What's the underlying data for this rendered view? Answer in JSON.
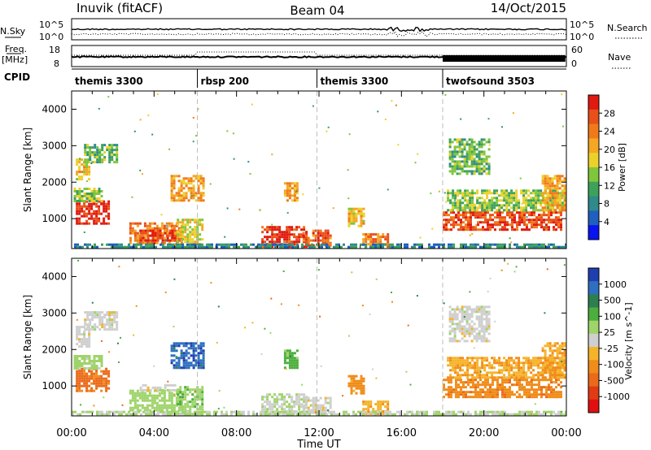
{
  "header": {
    "station": "Inuvik (fitACF)",
    "beam": "Beam 04",
    "date": "14/Oct/2015"
  },
  "panels": {
    "nsky_label": "N.Sky",
    "nsky_ticks": [
      "10^5",
      "10^0"
    ],
    "nsearch_label": "N.Search",
    "nsearch_ticks": [
      "10^5",
      "10^0"
    ],
    "freq_label_1": "Freq.",
    "freq_label_2": "[MHz]",
    "freq_ticks": [
      "18",
      "8"
    ],
    "nave_label": "Nave",
    "nave_ticks": [
      "60",
      "0"
    ],
    "cpid_label": "CPID"
  },
  "cpid_segments": [
    {
      "name": "themis 3300",
      "start_hour": 0
    },
    {
      "name": "rbsp 200",
      "start_hour": 6.1
    },
    {
      "name": "themis 3300",
      "start_hour": 11.9
    },
    {
      "name": "twofsound 3503",
      "start_hour": 18.0
    }
  ],
  "colors": {
    "power_scale": [
      "#0a14f0",
      "#1f5fbf",
      "#2f8a8a",
      "#3da15a",
      "#7fc63c",
      "#ecd12a",
      "#f5a623",
      "#f07a1a",
      "#e8501a",
      "#e01a10"
    ],
    "velocity_scale": [
      "#1f3fb0",
      "#2e6fbf",
      "#2e7f4f",
      "#4cae3c",
      "#9fd46a",
      "#cfcfcf",
      "#f5b32a",
      "#f08c1a",
      "#ea6a1a",
      "#e23a14",
      "#e01010"
    ]
  },
  "chart_data": [
    {
      "type": "heatmap",
      "title": "Power [dB]",
      "ylabel": "Slant Range [km]",
      "xlabel": "Time UT",
      "x_ticks": [
        "00:00",
        "04:00",
        "08:00",
        "12:00",
        "16:00",
        "20:00",
        "00:00"
      ],
      "y_ticks": [
        1000,
        2000,
        3000,
        4000
      ],
      "xlim": [
        0,
        24
      ],
      "ylim": [
        180,
        4500
      ],
      "colorbar_label": "Power [dB]",
      "colorbar_ticks": [
        "28",
        "24",
        "20",
        "16",
        "12",
        "8",
        "4"
      ],
      "colorbar_range": [
        0,
        30
      ],
      "regions": [
        {
          "t0": 0.2,
          "t1": 1.8,
          "r0": 850,
          "r1": 1500,
          "v": 28
        },
        {
          "t0": 0.1,
          "t1": 1.5,
          "r0": 1500,
          "r1": 1850,
          "v": 14
        },
        {
          "t0": 0.2,
          "t1": 0.9,
          "r0": 2100,
          "r1": 2650,
          "v": 18
        },
        {
          "t0": 0.6,
          "t1": 2.2,
          "r0": 2550,
          "r1": 3050,
          "v": 12
        },
        {
          "t0": 2.8,
          "t1": 5.3,
          "r0": 300,
          "r1": 900,
          "v": 22
        },
        {
          "t0": 3.3,
          "t1": 5.0,
          "r0": 400,
          "r1": 700,
          "v": 28
        },
        {
          "t0": 5.1,
          "t1": 6.3,
          "r0": 200,
          "r1": 1000,
          "v": 16
        },
        {
          "t0": 4.8,
          "t1": 6.4,
          "r0": 1500,
          "r1": 2200,
          "v": 20
        },
        {
          "t0": 9.2,
          "t1": 11.4,
          "r0": 250,
          "r1": 800,
          "v": 27
        },
        {
          "t0": 10.3,
          "t1": 10.9,
          "r0": 1500,
          "r1": 2000,
          "v": 20
        },
        {
          "t0": 11.2,
          "t1": 12.6,
          "r0": 250,
          "r1": 700,
          "v": 24
        },
        {
          "t0": 13.4,
          "t1": 14.2,
          "r0": 800,
          "r1": 1300,
          "v": 18
        },
        {
          "t0": 14.1,
          "t1": 15.3,
          "r0": 250,
          "r1": 600,
          "v": 22
        },
        {
          "t0": 18.0,
          "t1": 23.8,
          "r0": 700,
          "r1": 1200,
          "v": 26
        },
        {
          "t0": 18.2,
          "t1": 23.9,
          "r0": 1200,
          "r1": 1800,
          "v": 14
        },
        {
          "t0": 18.3,
          "t1": 20.2,
          "r0": 2200,
          "r1": 3200,
          "v": 12
        },
        {
          "t0": 22.8,
          "t1": 24.0,
          "r0": 1200,
          "r1": 2200,
          "v": 20
        },
        {
          "t0": 0,
          "t1": 24,
          "r0": 180,
          "r1": 320,
          "v": 8
        }
      ]
    },
    {
      "type": "heatmap",
      "title": "Velocity [m s^-1]",
      "ylabel": "Slant Range [km]",
      "xlabel": "Time UT",
      "x_ticks": [
        "00:00",
        "04:00",
        "08:00",
        "12:00",
        "16:00",
        "20:00",
        "00:00"
      ],
      "y_ticks": [
        1000,
        2000,
        3000,
        4000
      ],
      "xlim": [
        0,
        24
      ],
      "ylim": [
        180,
        4500
      ],
      "colorbar_label": "Velocity [m s^-1]",
      "colorbar_ticks": [
        "1000",
        "500",
        "100",
        "25",
        "-25",
        "-100",
        "-500",
        "-1000"
      ],
      "colorbar_range": [
        -1000,
        1000
      ],
      "regions": [
        {
          "t0": 0.2,
          "t1": 1.8,
          "r0": 850,
          "r1": 1500,
          "v": -300
        },
        {
          "t0": 0.1,
          "t1": 1.5,
          "r0": 1500,
          "r1": 1850,
          "v": 50
        },
        {
          "t0": 0.2,
          "t1": 0.9,
          "r0": 2100,
          "r1": 2650,
          "v": 0
        },
        {
          "t0": 0.6,
          "t1": 2.2,
          "r0": 2550,
          "r1": 3050,
          "v": 0
        },
        {
          "t0": 2.8,
          "t1": 5.3,
          "r0": 300,
          "r1": 900,
          "v": 60
        },
        {
          "t0": 3.3,
          "t1": 5.0,
          "r0": 850,
          "r1": 1050,
          "v": 0
        },
        {
          "t0": 5.1,
          "t1": 6.3,
          "r0": 200,
          "r1": 1000,
          "v": 80
        },
        {
          "t0": 4.8,
          "t1": 6.4,
          "r0": 1500,
          "r1": 2200,
          "v": 800
        },
        {
          "t0": 9.2,
          "t1": 11.4,
          "r0": 250,
          "r1": 800,
          "v": 20
        },
        {
          "t0": 10.3,
          "t1": 10.9,
          "r0": 1500,
          "r1": 2000,
          "v": 150
        },
        {
          "t0": 11.2,
          "t1": 12.6,
          "r0": 250,
          "r1": 700,
          "v": 0
        },
        {
          "t0": 13.4,
          "t1": 14.2,
          "r0": 800,
          "r1": 1300,
          "v": -150
        },
        {
          "t0": 14.1,
          "t1": 15.3,
          "r0": 250,
          "r1": 600,
          "v": -80
        },
        {
          "t0": 18.0,
          "t1": 23.8,
          "r0": 700,
          "r1": 1200,
          "v": -200
        },
        {
          "t0": 18.2,
          "t1": 23.9,
          "r0": 1200,
          "r1": 1800,
          "v": -90
        },
        {
          "t0": 18.3,
          "t1": 20.2,
          "r0": 2200,
          "r1": 3200,
          "v": 0
        },
        {
          "t0": 22.8,
          "t1": 24.0,
          "r0": 1200,
          "r1": 2200,
          "v": -100
        },
        {
          "t0": 0,
          "t1": 24,
          "r0": 180,
          "r1": 320,
          "v": 30
        }
      ]
    }
  ]
}
